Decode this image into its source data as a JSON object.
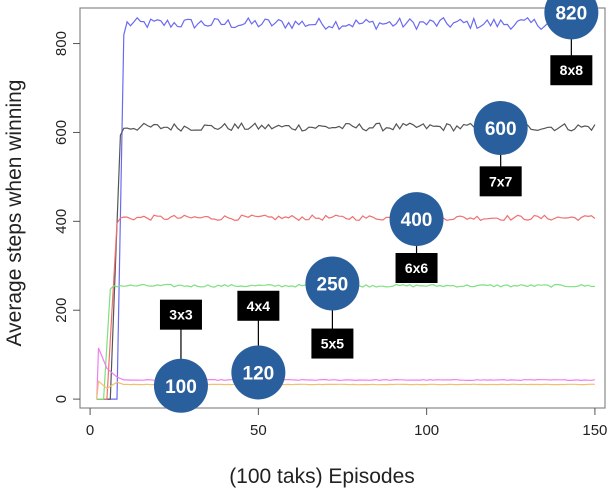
{
  "chart_data": {
    "type": "line",
    "title": "",
    "xlabel": "(100 taks) Episodes",
    "ylabel": "Average steps when winning",
    "xlim": [
      -3,
      153
    ],
    "ylim": [
      -20,
      880
    ],
    "xticks": [
      0,
      50,
      100,
      150
    ],
    "yticks": [
      0,
      200,
      400,
      600,
      800
    ],
    "grid": false,
    "series": [
      {
        "color": "#6a6af0",
        "start_x": 2,
        "rise_x": [
          8,
          10
        ],
        "plateau": 845,
        "noise": 13
      },
      {
        "color": "#555555",
        "start_x": 2,
        "rise_x": [
          6,
          9
        ],
        "plateau": 612,
        "noise": 9
      },
      {
        "color": "#f07070",
        "start_x": 2,
        "rise_x": [
          5,
          8
        ],
        "plateau": 408,
        "noise": 6
      },
      {
        "color": "#7ee07e",
        "start_x": 2,
        "rise_x": [
          4,
          6
        ],
        "plateau": 255,
        "noise": 3
      },
      {
        "color": "#f07ef0",
        "start_x": 2,
        "peak": 115,
        "plateau": 43,
        "noise": 1
      },
      {
        "color": "#f0c070",
        "start_x": 2,
        "peak": 40,
        "plateau": 33,
        "noise": 0.5
      }
    ],
    "annotations": [
      {
        "value": "100",
        "grid": "3x3",
        "x": 27,
        "bubble_y": 30,
        "box_y": 190
      },
      {
        "value": "120",
        "grid": "4x4",
        "x": 50,
        "bubble_y": 60,
        "box_y": 210
      },
      {
        "value": "250",
        "grid": "5x5",
        "x": 72,
        "bubble_y": 260,
        "box_y": 125
      },
      {
        "value": "400",
        "grid": "6x6",
        "x": 97,
        "bubble_y": 405,
        "box_y": 295
      },
      {
        "value": "600",
        "grid": "7x7",
        "x": 122,
        "bubble_y": 610,
        "box_y": 490
      },
      {
        "value": "820",
        "grid": "8x8",
        "x": 143,
        "bubble_y": 870,
        "box_y": 740
      }
    ]
  }
}
